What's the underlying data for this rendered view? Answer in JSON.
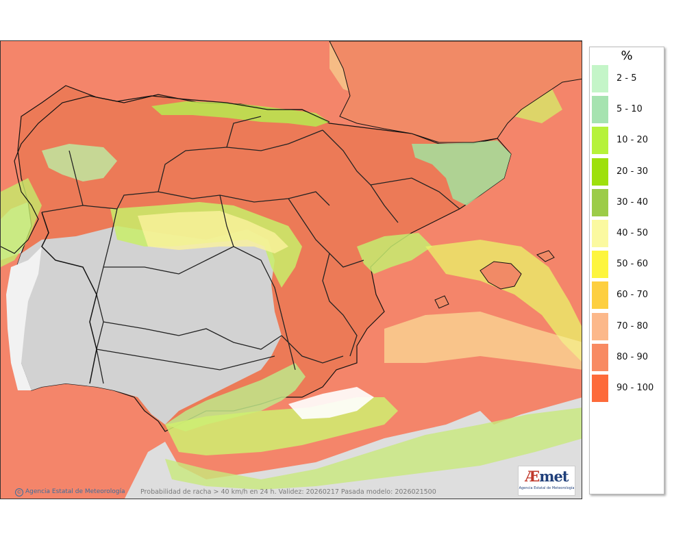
{
  "map": {
    "region": "Iberian Peninsula and Balearic Islands",
    "variable": "gust probability",
    "land_no_data_color": "#dedede",
    "boundary_color": "#111111"
  },
  "legend": {
    "unit": "%",
    "entries": [
      {
        "label": "2 - 5",
        "color": "#c4f5c8"
      },
      {
        "label": "5 - 10",
        "color": "#a6e3b0"
      },
      {
        "label": "10 - 20",
        "color": "#b6f23a"
      },
      {
        "label": "20 - 30",
        "color": "#9ee00c"
      },
      {
        "label": "30 - 40",
        "color": "#9ccc48"
      },
      {
        "label": "40 - 50",
        "color": "#fbf9a0"
      },
      {
        "label": "50 - 60",
        "color": "#fdf53e"
      },
      {
        "label": "60 - 70",
        "color": "#fdcf40"
      },
      {
        "label": "70 - 80",
        "color": "#fcb88a"
      },
      {
        "label": "80 - 90",
        "color": "#f88a62"
      },
      {
        "label": "90 - 100",
        "color": "#fd6a3a"
      }
    ]
  },
  "footer": {
    "credit": "Agencia Estatal de Meteorología",
    "credit_symbol": "©",
    "caption": "Probabilidad de racha > 40 km/h en 24 h. Validez: 20260217 Pasada modelo: 2026021500"
  },
  "logo": {
    "word_a": "Æ",
    "word_b": "met",
    "subtitle": "Agencia Estatal de Meteorología"
  }
}
